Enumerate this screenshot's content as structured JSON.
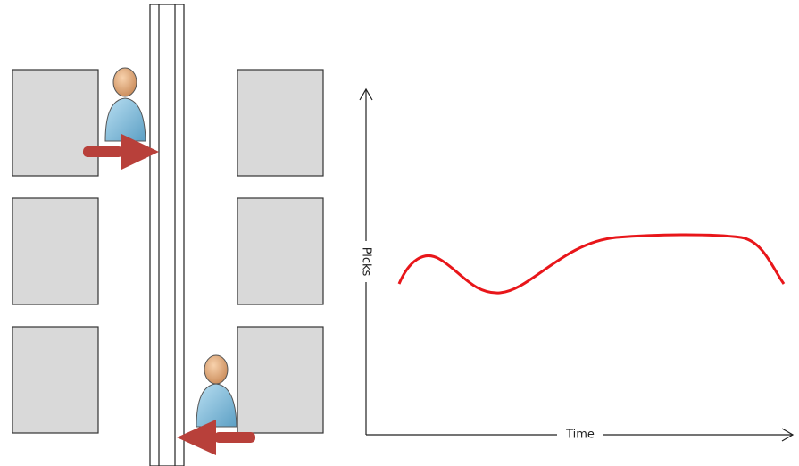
{
  "diagram": {
    "y_axis_label": "Picks",
    "x_axis_label": "Time"
  }
}
